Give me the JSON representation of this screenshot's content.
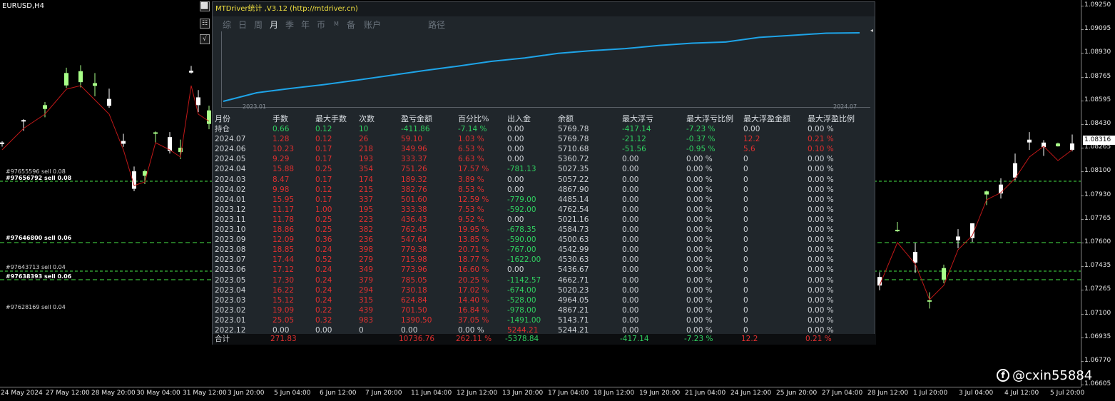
{
  "chart": {
    "symbol": "EURUSD,H4",
    "current_price": "1.08316",
    "price_ticks": [
      "1.09250",
      "1.09095",
      "1.08930",
      "1.08765",
      "1.08595",
      "1.08430",
      "1.08265",
      "1.08100",
      "1.07930",
      "1.07765",
      "1.07600",
      "1.07435",
      "1.07265",
      "1.07100",
      "1.06935",
      "1.06770",
      "1.06605"
    ],
    "time_ticks": [
      "24 May 2024",
      "27 May 12:00",
      "28 May 20:00",
      "30 May 04:00",
      "31 May 12:00",
      "3 Jun 20:00",
      "5 Jun 04:00",
      "6 Jun 12:00",
      "7 Jun 20:00",
      "11 Jun 04:00",
      "12 Jun 12:00",
      "13 Jun 20:00",
      "17 Jun 04:00",
      "18 Jun 12:00",
      "19 Jun 20:00",
      "21 Jun 04:00",
      "24 Jun 12:00",
      "25 Jun 20:00",
      "27 Jun 04:00",
      "28 Jun 12:00",
      "1 Jul 20:00",
      "3 Jul 04:00",
      "4 Jul 12:00",
      "5 Jul 20:00"
    ],
    "orders": [
      {
        "label": "#97655596 sell 0.08",
        "bold": false
      },
      {
        "label": "#97656792 sell 0.08",
        "bold": true
      },
      {
        "label": "#97646800 sell 0.06",
        "bold": true
      },
      {
        "label": "#97643713 sell 0.04",
        "bold": false
      },
      {
        "label": "#97638393 sell 0.06",
        "bold": true
      },
      {
        "label": "#97628169 sell 0.04",
        "bold": false
      }
    ],
    "colors": {
      "bull_candle": "#a8ff88",
      "bear_candle": "#ffffff",
      "ma": "#c01818",
      "order_line": "#3ab83a"
    }
  },
  "side_buttons": [
    "⬜",
    "☷",
    "√"
  ],
  "panel": {
    "title": "MTDriver统计 ,V3.12 (http://mtdriver.cn)",
    "tabs": [
      {
        "label": "综",
        "active": false,
        "small": false
      },
      {
        "label": "日",
        "active": false,
        "small": false
      },
      {
        "label": "周",
        "active": false,
        "small": false
      },
      {
        "label": "月",
        "active": true,
        "small": false
      },
      {
        "label": "季",
        "active": false,
        "small": false
      },
      {
        "label": "年",
        "active": false,
        "small": false
      },
      {
        "label": "币",
        "active": false,
        "small": false
      },
      {
        "label": "M",
        "active": false,
        "small": true
      },
      {
        "label": "备",
        "active": false,
        "small": false
      },
      {
        "label": "账户",
        "active": false,
        "small": false
      },
      {
        "label": "路径",
        "active": false,
        "small": false
      }
    ],
    "equity_start": "2023.01",
    "equity_end": "2024.07",
    "equity_marker": "◂",
    "equity_color": "#1ea4e8",
    "columns": [
      "月份",
      "手数",
      "最大手数",
      "次数",
      "盈亏金额",
      "百分比%",
      "出入金",
      "余额",
      "最大浮亏",
      "最大浮亏比例",
      "最大浮盈金额",
      "最大浮盈比例"
    ],
    "rows": [
      {
        "k": "hold",
        "c": [
          "持仓",
          "0.66",
          "0.12",
          "10",
          "-411.86",
          "-7.14 %",
          "0.00",
          "5769.78",
          "-417.14",
          "-7.23 %",
          "0.00",
          "0.00 %"
        ],
        "s": [
          "neu",
          "neg",
          "neg",
          "neg",
          "neg",
          "neg",
          "neu",
          "neu",
          "neg",
          "neg",
          "neu",
          "neu"
        ]
      },
      {
        "k": "",
        "c": [
          "2024.07",
          "1.28",
          "0.12",
          "26",
          "59.10",
          "1.03 %",
          "0.00",
          "5769.78",
          "-21.12",
          "-0.37 %",
          "12.2",
          "0.21 %"
        ],
        "s": [
          "neu",
          "pos",
          "pos",
          "pos",
          "pos",
          "pos",
          "neu",
          "neu",
          "neg",
          "neg",
          "pos",
          "pos"
        ]
      },
      {
        "k": "",
        "c": [
          "2024.06",
          "10.23",
          "0.17",
          "218",
          "349.96",
          "6.53 %",
          "0.00",
          "5710.68",
          "-51.56",
          "-0.95 %",
          "5.6",
          "0.10 %"
        ],
        "s": [
          "neu",
          "pos",
          "pos",
          "pos",
          "pos",
          "pos",
          "neu",
          "neu",
          "neg",
          "neg",
          "pos",
          "pos"
        ]
      },
      {
        "k": "",
        "c": [
          "2024.05",
          "9.29",
          "0.17",
          "193",
          "333.37",
          "6.63 %",
          "0.00",
          "5360.72",
          "0.00",
          "0.00 %",
          "0",
          "0.00 %"
        ],
        "s": [
          "neu",
          "pos",
          "pos",
          "pos",
          "pos",
          "pos",
          "neu",
          "neu",
          "neu",
          "neu",
          "neu",
          "neu"
        ]
      },
      {
        "k": "",
        "c": [
          "2024.04",
          "15.88",
          "0.25",
          "354",
          "751.26",
          "17.57 %",
          "-781.13",
          "5027.35",
          "0.00",
          "0.00 %",
          "0",
          "0.00 %"
        ],
        "s": [
          "neu",
          "pos",
          "pos",
          "pos",
          "pos",
          "pos",
          "neg",
          "neu",
          "neu",
          "neu",
          "neu",
          "neu"
        ]
      },
      {
        "k": "",
        "c": [
          "2024.03",
          "8.47",
          "0.17",
          "174",
          "189.32",
          "3.89 %",
          "0.00",
          "5057.22",
          "0.00",
          "0.00 %",
          "0",
          "0.00 %"
        ],
        "s": [
          "neu",
          "pos",
          "pos",
          "pos",
          "pos",
          "pos",
          "neu",
          "neu",
          "neu",
          "neu",
          "neu",
          "neu"
        ]
      },
      {
        "k": "",
        "c": [
          "2024.02",
          "9.98",
          "0.12",
          "215",
          "382.76",
          "8.53 %",
          "0.00",
          "4867.90",
          "0.00",
          "0.00 %",
          "0",
          "0.00 %"
        ],
        "s": [
          "neu",
          "pos",
          "pos",
          "pos",
          "pos",
          "pos",
          "neu",
          "neu",
          "neu",
          "neu",
          "neu",
          "neu"
        ]
      },
      {
        "k": "",
        "c": [
          "2024.01",
          "15.95",
          "0.17",
          "337",
          "501.60",
          "12.59 %",
          "-779.00",
          "4485.14",
          "0.00",
          "0.00 %",
          "0",
          "0.00 %"
        ],
        "s": [
          "neu",
          "pos",
          "pos",
          "pos",
          "pos",
          "pos",
          "neg",
          "neu",
          "neu",
          "neu",
          "neu",
          "neu"
        ]
      },
      {
        "k": "",
        "c": [
          "2023.12",
          "11.17",
          "1.00",
          "195",
          "333.38",
          "7.53 %",
          "-592.00",
          "4762.54",
          "0.00",
          "0.00 %",
          "0",
          "0.00 %"
        ],
        "s": [
          "neu",
          "pos",
          "pos",
          "pos",
          "pos",
          "pos",
          "neg",
          "neu",
          "neu",
          "neu",
          "neu",
          "neu"
        ]
      },
      {
        "k": "",
        "c": [
          "2023.11",
          "11.78",
          "0.25",
          "223",
          "436.43",
          "9.52 %",
          "0.00",
          "5021.16",
          "0.00",
          "0.00 %",
          "0",
          "0.00 %"
        ],
        "s": [
          "neu",
          "pos",
          "pos",
          "pos",
          "pos",
          "pos",
          "neu",
          "neu",
          "neu",
          "neu",
          "neu",
          "neu"
        ]
      },
      {
        "k": "",
        "c": [
          "2023.10",
          "18.86",
          "0.25",
          "382",
          "762.45",
          "19.95 %",
          "-678.35",
          "4584.73",
          "0.00",
          "0.00 %",
          "0",
          "0.00 %"
        ],
        "s": [
          "neu",
          "pos",
          "pos",
          "pos",
          "pos",
          "pos",
          "neg",
          "neu",
          "neu",
          "neu",
          "neu",
          "neu"
        ]
      },
      {
        "k": "",
        "c": [
          "2023.09",
          "12.09",
          "0.36",
          "236",
          "547.64",
          "13.85 %",
          "-590.00",
          "4500.63",
          "0.00",
          "0.00 %",
          "0",
          "0.00 %"
        ],
        "s": [
          "neu",
          "pos",
          "pos",
          "pos",
          "pos",
          "pos",
          "neg",
          "neu",
          "neu",
          "neu",
          "neu",
          "neu"
        ]
      },
      {
        "k": "",
        "c": [
          "2023.08",
          "18.85",
          "0.24",
          "398",
          "779.38",
          "20.71 %",
          "-767.00",
          "4542.99",
          "0.00",
          "0.00 %",
          "0",
          "0.00 %"
        ],
        "s": [
          "neu",
          "pos",
          "pos",
          "pos",
          "pos",
          "pos",
          "neg",
          "neu",
          "neu",
          "neu",
          "neu",
          "neu"
        ]
      },
      {
        "k": "",
        "c": [
          "2023.07",
          "17.44",
          "0.52",
          "279",
          "715.98",
          "18.77 %",
          "-1622.00",
          "4530.63",
          "0.00",
          "0.00 %",
          "0",
          "0.00 %"
        ],
        "s": [
          "neu",
          "pos",
          "pos",
          "pos",
          "pos",
          "pos",
          "neg",
          "neu",
          "neu",
          "neu",
          "neu",
          "neu"
        ]
      },
      {
        "k": "",
        "c": [
          "2023.06",
          "17.12",
          "0.24",
          "349",
          "773.96",
          "16.60 %",
          "0.00",
          "5436.67",
          "0.00",
          "0.00 %",
          "0",
          "0.00 %"
        ],
        "s": [
          "neu",
          "pos",
          "pos",
          "pos",
          "pos",
          "pos",
          "neu",
          "neu",
          "neu",
          "neu",
          "neu",
          "neu"
        ]
      },
      {
        "k": "",
        "c": [
          "2023.05",
          "17.30",
          "0.24",
          "379",
          "785.05",
          "20.25 %",
          "-1142.57",
          "4662.71",
          "0.00",
          "0.00 %",
          "0",
          "0.00 %"
        ],
        "s": [
          "neu",
          "pos",
          "pos",
          "pos",
          "pos",
          "pos",
          "neg",
          "neu",
          "neu",
          "neu",
          "neu",
          "neu"
        ]
      },
      {
        "k": "",
        "c": [
          "2023.04",
          "16.22",
          "0.24",
          "294",
          "730.18",
          "17.02 %",
          "-674.00",
          "5020.23",
          "0.00",
          "0.00 %",
          "0",
          "0.00 %"
        ],
        "s": [
          "neu",
          "pos",
          "pos",
          "pos",
          "pos",
          "pos",
          "neg",
          "neu",
          "neu",
          "neu",
          "neu",
          "neu"
        ]
      },
      {
        "k": "",
        "c": [
          "2023.03",
          "15.12",
          "0.24",
          "315",
          "624.84",
          "14.40 %",
          "-528.00",
          "4964.05",
          "0.00",
          "0.00 %",
          "0",
          "0.00 %"
        ],
        "s": [
          "neu",
          "pos",
          "pos",
          "pos",
          "pos",
          "pos",
          "neg",
          "neu",
          "neu",
          "neu",
          "neu",
          "neu"
        ]
      },
      {
        "k": "",
        "c": [
          "2023.02",
          "19.09",
          "0.22",
          "439",
          "701.50",
          "16.84 %",
          "-978.00",
          "4867.21",
          "0.00",
          "0.00 %",
          "0",
          "0.00 %"
        ],
        "s": [
          "neu",
          "pos",
          "pos",
          "pos",
          "pos",
          "pos",
          "neg",
          "neu",
          "neu",
          "neu",
          "neu",
          "neu"
        ]
      },
      {
        "k": "",
        "c": [
          "2023.01",
          "25.05",
          "0.32",
          "983",
          "1390.50",
          "37.05 %",
          "-1491.00",
          "5143.71",
          "0.00",
          "0.00 %",
          "0",
          "0.00 %"
        ],
        "s": [
          "neu",
          "pos",
          "pos",
          "pos",
          "pos",
          "pos",
          "neg",
          "neu",
          "neu",
          "neu",
          "neu",
          "neu"
        ]
      },
      {
        "k": "",
        "c": [
          "2022.12",
          "0.00",
          "0.00",
          "0",
          "0.00",
          "0.00 %",
          "5244.21",
          "5244.21",
          "0.00",
          "0.00 %",
          "0",
          "0.00 %"
        ],
        "s": [
          "neu",
          "neu",
          "neu",
          "neu",
          "neu",
          "neu",
          "pos",
          "neu",
          "neu",
          "neu",
          "neu",
          "neu"
        ]
      }
    ],
    "total": {
      "c": [
        "合计",
        "271.83",
        "",
        "",
        "10736.76",
        "262.11 %",
        "-5378.84",
        "",
        "-417.14",
        "-7.23 %",
        "12.2",
        "0.21 %"
      ],
      "s": [
        "neu",
        "pos",
        "neu",
        "neu",
        "pos",
        "pos",
        "neg",
        "neu",
        "neg",
        "neg",
        "pos",
        "pos"
      ]
    }
  },
  "watermark": {
    "icon": "f",
    "text": "@cxin55884"
  }
}
